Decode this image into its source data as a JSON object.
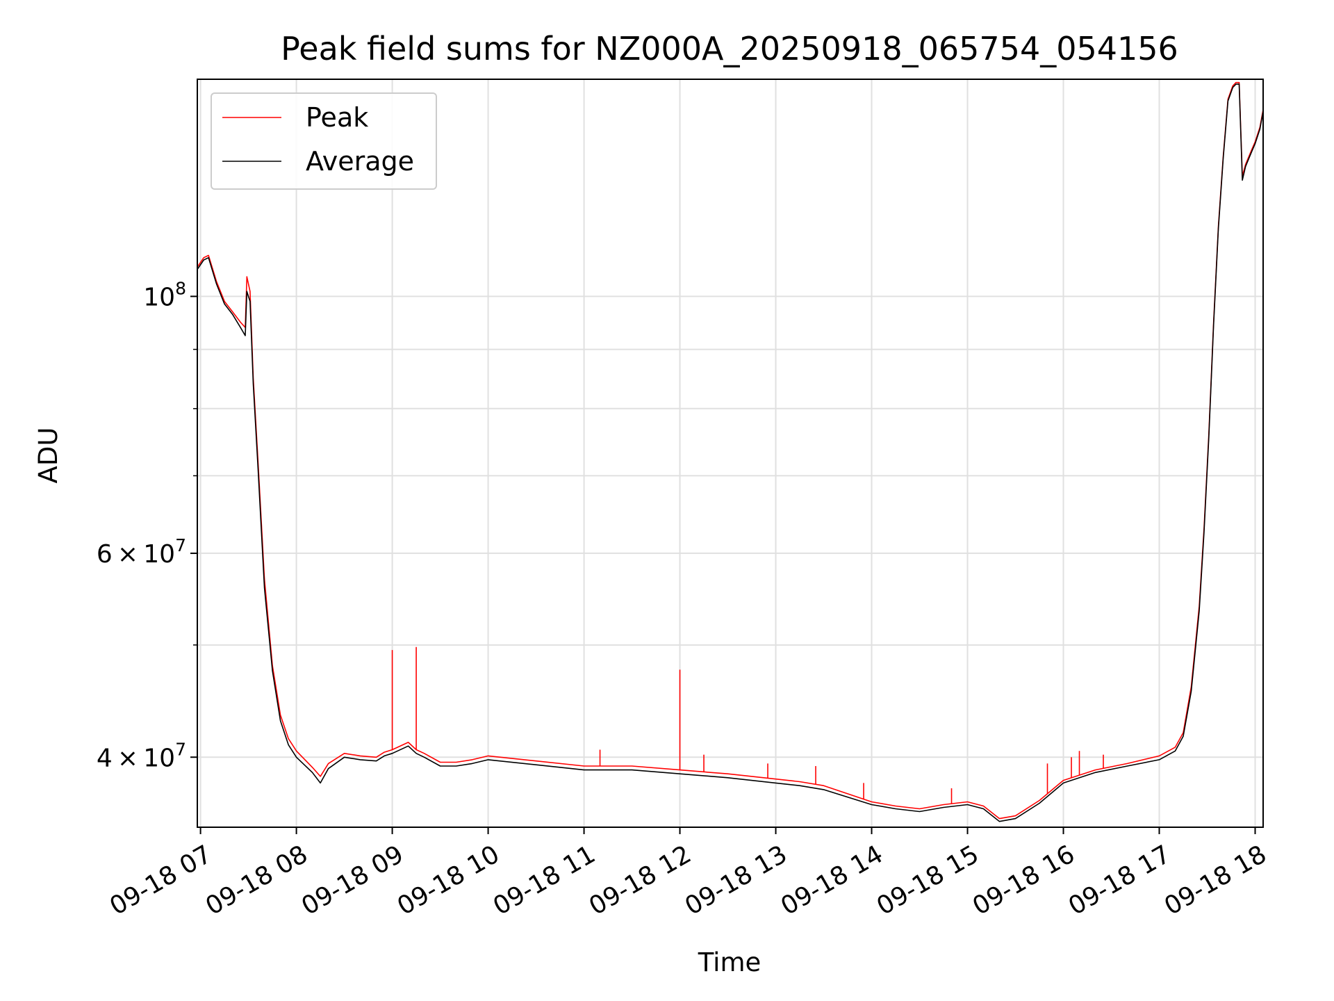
{
  "chart_data": {
    "type": "line",
    "title": "Peak field sums for NZ000A_20250918_065754_054156",
    "xlabel": "Time",
    "ylabel": "ADU",
    "y_scale": "log",
    "grid": true,
    "legend_position": "top-left",
    "xlim": [
      "09-18 06:58",
      "09-18 18:05"
    ],
    "ylim": [
      34800000,
      154000000
    ],
    "x_ticks": [
      "09-18 07",
      "09-18 08",
      "09-18 09",
      "09-18 10",
      "09-18 11",
      "09-18 12",
      "09-18 13",
      "09-18 14",
      "09-18 15",
      "09-18 16",
      "09-18 17",
      "09-18 18"
    ],
    "y_tick_labels": [
      {
        "value": 100000000,
        "mantissa": "",
        "base": "10",
        "exp": "8"
      },
      {
        "value": 60000000,
        "mantissa": "6 × ",
        "base": "10",
        "exp": "7"
      },
      {
        "value": 40000000,
        "mantissa": "4 × ",
        "base": "10",
        "exp": "7"
      }
    ],
    "y_minor_ticks": [
      50000000,
      70000000,
      80000000,
      90000000
    ],
    "series": [
      {
        "name": "Peak",
        "color": "#ff0000",
        "x": [
          "09-18 06:58",
          "09-18 07:02",
          "09-18 07:05",
          "09-18 07:10",
          "09-18 07:15",
          "09-18 07:20",
          "09-18 07:25",
          "09-18 07:28",
          "09-18 07:29",
          "09-18 07:31",
          "09-18 07:33",
          "09-18 07:36",
          "09-18 07:40",
          "09-18 07:45",
          "09-18 07:50",
          "09-18 07:55",
          "09-18 08:00",
          "09-18 08:10",
          "09-18 08:15",
          "09-18 08:20",
          "09-18 08:30",
          "09-18 08:40",
          "09-18 08:50",
          "09-18 08:55",
          "09-18 09:00",
          "09-18 09:10",
          "09-18 09:15",
          "09-18 09:20",
          "09-18 09:30",
          "09-18 09:40",
          "09-18 09:50",
          "09-18 10:00",
          "09-18 10:30",
          "09-18 11:00",
          "09-18 11:30",
          "09-18 12:00",
          "09-18 12:30",
          "09-18 13:00",
          "09-18 13:15",
          "09-18 13:30",
          "09-18 14:00",
          "09-18 14:15",
          "09-18 14:30",
          "09-18 14:45",
          "09-18 15:00",
          "09-18 15:10",
          "09-18 15:20",
          "09-18 15:30",
          "09-18 15:45",
          "09-18 16:00",
          "09-18 16:20",
          "09-18 16:40",
          "09-18 17:00",
          "09-18 17:10",
          "09-18 17:15",
          "09-18 17:20",
          "09-18 17:25",
          "09-18 17:28",
          "09-18 17:31",
          "09-18 17:34",
          "09-18 17:37",
          "09-18 17:40",
          "09-18 17:43",
          "09-18 17:46",
          "09-18 17:48",
          "09-18 17:50",
          "09-18 17:52",
          "09-18 17:54",
          "09-18 17:56",
          "09-18 17:58",
          "09-18 18:00",
          "09-18 18:03",
          "09-18 18:05"
        ],
        "y": [
          106000000,
          108000000,
          108500000,
          103000000,
          99000000,
          97000000,
          95000000,
          94000000,
          104000000,
          101000000,
          85000000,
          72000000,
          57000000,
          48000000,
          43500000,
          41500000,
          40500000,
          39200000,
          38500000,
          39500000,
          40300000,
          40100000,
          40000000,
          40400000,
          40600000,
          41200000,
          40600000,
          40300000,
          39600000,
          39600000,
          39800000,
          40100000,
          39700000,
          39300000,
          39300000,
          39000000,
          38700000,
          38300000,
          38100000,
          37800000,
          36600000,
          36300000,
          36100000,
          36400000,
          36600000,
          36300000,
          35400000,
          35600000,
          36700000,
          38200000,
          39000000,
          39500000,
          40100000,
          40800000,
          42000000,
          46000000,
          54000000,
          63000000,
          76000000,
          95000000,
          115000000,
          132000000,
          148000000,
          152000000,
          153000000,
          153000000,
          127000000,
          130000000,
          132000000,
          134000000,
          136000000,
          140000000,
          145000000
        ],
        "spikes": [
          {
            "x": "09-18 09:00",
            "y": 49500000
          },
          {
            "x": "09-18 09:15",
            "y": 49800000
          },
          {
            "x": "09-18 12:00",
            "y": 47600000
          },
          {
            "x": "09-18 11:10",
            "y": 40600000
          },
          {
            "x": "09-18 12:15",
            "y": 40200000
          },
          {
            "x": "09-18 12:55",
            "y": 39500000
          },
          {
            "x": "09-18 13:25",
            "y": 39300000
          },
          {
            "x": "09-18 13:55",
            "y": 38000000
          },
          {
            "x": "09-18 14:50",
            "y": 37600000
          },
          {
            "x": "09-18 15:50",
            "y": 39500000
          },
          {
            "x": "09-18 16:05",
            "y": 40000000
          },
          {
            "x": "09-18 16:10",
            "y": 40500000
          },
          {
            "x": "09-18 16:25",
            "y": 40200000
          }
        ]
      },
      {
        "name": "Average",
        "color": "#000000",
        "x": [
          "09-18 06:58",
          "09-18 07:02",
          "09-18 07:05",
          "09-18 07:10",
          "09-18 07:15",
          "09-18 07:20",
          "09-18 07:25",
          "09-18 07:28",
          "09-18 07:29",
          "09-18 07:31",
          "09-18 07:33",
          "09-18 07:36",
          "09-18 07:40",
          "09-18 07:45",
          "09-18 07:50",
          "09-18 07:55",
          "09-18 08:00",
          "09-18 08:10",
          "09-18 08:15",
          "09-18 08:20",
          "09-18 08:30",
          "09-18 08:40",
          "09-18 08:50",
          "09-18 08:55",
          "09-18 09:00",
          "09-18 09:10",
          "09-18 09:15",
          "09-18 09:20",
          "09-18 09:30",
          "09-18 09:40",
          "09-18 09:50",
          "09-18 10:00",
          "09-18 10:30",
          "09-18 11:00",
          "09-18 11:30",
          "09-18 12:00",
          "09-18 12:30",
          "09-18 13:00",
          "09-18 13:15",
          "09-18 13:30",
          "09-18 14:00",
          "09-18 14:15",
          "09-18 14:30",
          "09-18 14:45",
          "09-18 15:00",
          "09-18 15:10",
          "09-18 15:20",
          "09-18 15:30",
          "09-18 15:45",
          "09-18 16:00",
          "09-18 16:20",
          "09-18 16:40",
          "09-18 17:00",
          "09-18 17:10",
          "09-18 17:15",
          "09-18 17:20",
          "09-18 17:25",
          "09-18 17:28",
          "09-18 17:31",
          "09-18 17:34",
          "09-18 17:37",
          "09-18 17:40",
          "09-18 17:43",
          "09-18 17:46",
          "09-18 17:48",
          "09-18 17:50",
          "09-18 17:52",
          "09-18 17:54",
          "09-18 17:56",
          "09-18 17:58",
          "09-18 18:00",
          "09-18 18:03",
          "09-18 18:05"
        ],
        "y": [
          105500000,
          107500000,
          108000000,
          102500000,
          98500000,
          96500000,
          94000000,
          92500000,
          101000000,
          99000000,
          84000000,
          71000000,
          56000000,
          47500000,
          43000000,
          41000000,
          40000000,
          38800000,
          38000000,
          39100000,
          40000000,
          39800000,
          39700000,
          40100000,
          40300000,
          40900000,
          40300000,
          40000000,
          39300000,
          39300000,
          39500000,
          39800000,
          39400000,
          39000000,
          39000000,
          38700000,
          38400000,
          38000000,
          37800000,
          37500000,
          36400000,
          36100000,
          35900000,
          36200000,
          36400000,
          36100000,
          35200000,
          35400000,
          36500000,
          38000000,
          38800000,
          39300000,
          39800000,
          40500000,
          41700000,
          45600000,
          53500000,
          62500000,
          75500000,
          94500000,
          114500000,
          131500000,
          147500000,
          151500000,
          152500000,
          152500000,
          126000000,
          129500000,
          131500000,
          133500000,
          135500000,
          139500000,
          144500000
        ]
      }
    ],
    "legend": [
      {
        "label": "Peak",
        "color": "#ff0000"
      },
      {
        "label": "Average",
        "color": "#000000"
      }
    ]
  }
}
